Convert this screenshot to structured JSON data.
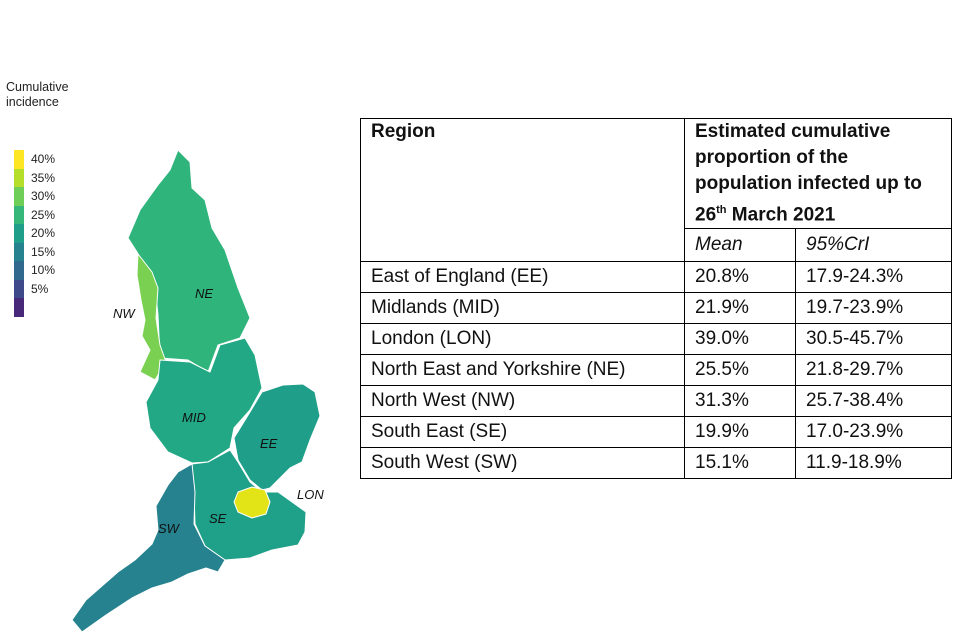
{
  "legend": {
    "title_line1": "Cumulative",
    "title_line2": "incidence",
    "items": [
      {
        "label": "40%",
        "color": "#fde725"
      },
      {
        "label": "35%",
        "color": "#b5de2b"
      },
      {
        "label": "30%",
        "color": "#6ece58"
      },
      {
        "label": "25%",
        "color": "#35b779"
      },
      {
        "label": "20%",
        "color": "#1f9e89"
      },
      {
        "label": "15%",
        "color": "#26828e"
      },
      {
        "label": "10%",
        "color": "#31688e"
      },
      {
        "label": "5%",
        "color": "#3e4989"
      },
      {
        "label": "",
        "color": "#482878"
      }
    ]
  },
  "map": {
    "labels": {
      "nw": "NW",
      "ne": "NE",
      "mid": "MID",
      "ee": "EE",
      "lon": "LON",
      "se": "SE",
      "sw": "SW"
    },
    "region_colors": {
      "NE": "#2fb47c",
      "NW": "#7ad151",
      "MID": "#22a884",
      "EE": "#1f9e89",
      "SE": "#1fa088",
      "SW": "#26828e",
      "LON": "#e2e418"
    }
  },
  "table": {
    "header": {
      "region": "Region",
      "estimate_line1": "Estimated cumulative",
      "estimate_line2": "proportion of the",
      "estimate_line3": "population infected up to",
      "estimate_day": "26",
      "estimate_suffix": "th",
      "estimate_rest": " March 2021"
    },
    "subheader": {
      "mean": "Mean",
      "cri": "95%CrI"
    },
    "rows": [
      {
        "region": "East of England (EE)",
        "mean": "20.8%",
        "cri": "17.9-24.3%"
      },
      {
        "region": "Midlands (MID)",
        "mean": "21.9%",
        "cri": "19.7-23.9%"
      },
      {
        "region": "London (LON)",
        "mean": "39.0%",
        "cri": "30.5-45.7%"
      },
      {
        "region": "North East and Yorkshire (NE)",
        "mean": "25.5%",
        "cri": "21.8-29.7%"
      },
      {
        "region": "North West (NW)",
        "mean": "31.3%",
        "cri": "25.7-38.4%"
      },
      {
        "region": "South East (SE)",
        "mean": "19.9%",
        "cri": "17.0-23.9%"
      },
      {
        "region": "South West (SW)",
        "mean": "15.1%",
        "cri": "11.9-18.9%"
      }
    ]
  }
}
